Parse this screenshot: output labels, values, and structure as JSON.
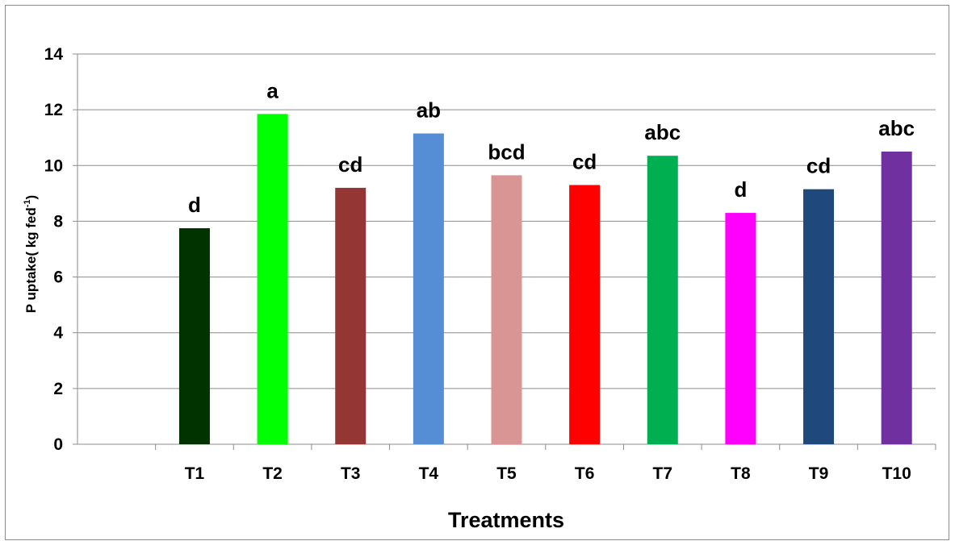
{
  "chart_data": {
    "type": "bar",
    "categories": [
      "",
      "T1",
      "T2",
      "T3",
      "T4",
      "T5",
      "T6",
      "T7",
      "T8",
      "T9",
      "T10"
    ],
    "values": [
      null,
      7.75,
      11.85,
      9.2,
      11.15,
      9.65,
      9.3,
      10.35,
      8.3,
      9.15,
      10.5
    ],
    "significance_labels": [
      "",
      "d",
      "a",
      "cd",
      "ab",
      "bcd",
      "cd",
      "abc",
      "d",
      "cd",
      "abc"
    ],
    "colors": [
      "",
      "#003300",
      "#00ff00",
      "#943634",
      "#558ed5",
      "#d99594",
      "#ff0000",
      "#00b050",
      "#ff00ff",
      "#1f497d",
      "#7030a0"
    ],
    "title": "",
    "xlabel": "Treatments",
    "ylabel_main": "P uptake( kg fed",
    "ylabel_sup": "-1",
    "ylabel_end": ")",
    "ylim": [
      0,
      14
    ],
    "yticks": [
      "0",
      "2",
      "4",
      "6",
      "8",
      "10",
      "12",
      "14"
    ],
    "grid": true,
    "legend": "none"
  }
}
